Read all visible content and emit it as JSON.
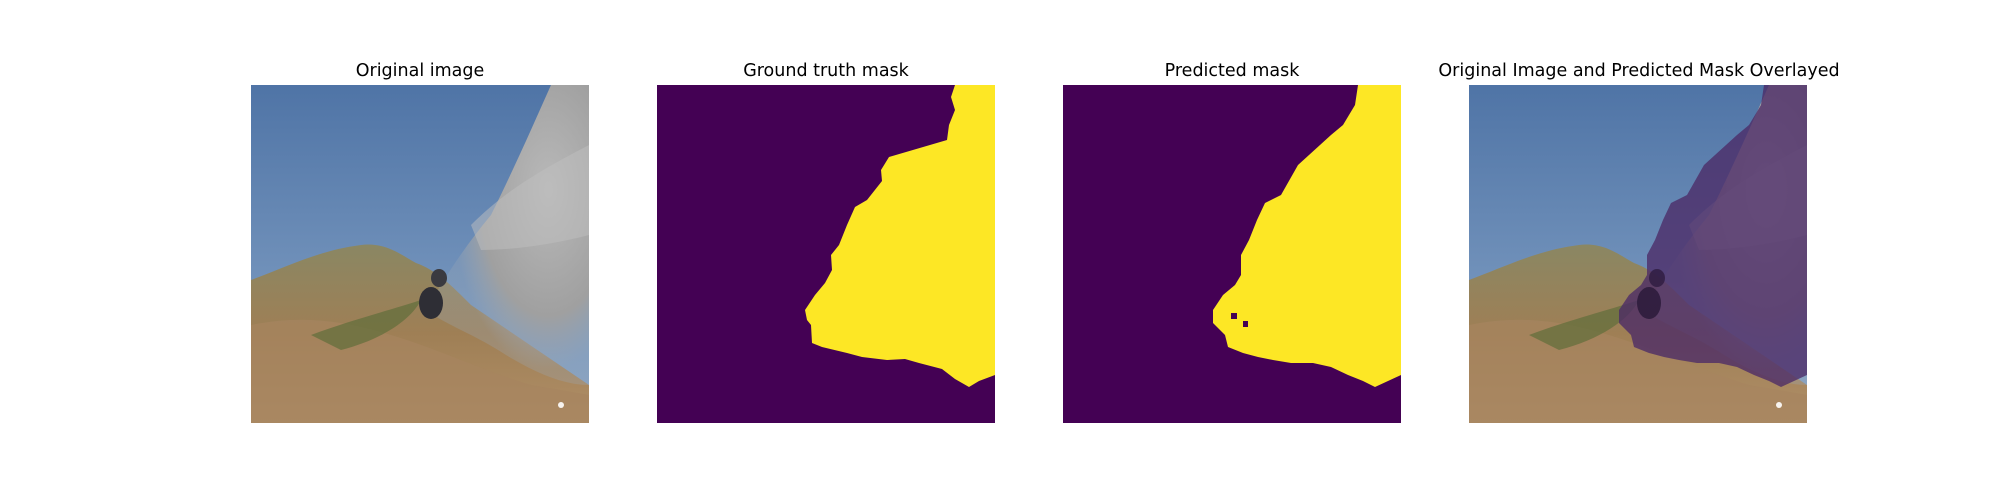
{
  "panels": {
    "original": {
      "title": "Original image"
    },
    "ground_truth": {
      "title": "Ground truth mask"
    },
    "predicted": {
      "title": "Predicted mask"
    },
    "overlay": {
      "title": "Original Image and Predicted Mask Overlayed"
    }
  },
  "colors": {
    "mask_background": "#440154",
    "mask_foreground": "#fde725",
    "sky": "#5a7fae",
    "smoke": "#a3a3a3",
    "hillside": "#9c8a62"
  }
}
